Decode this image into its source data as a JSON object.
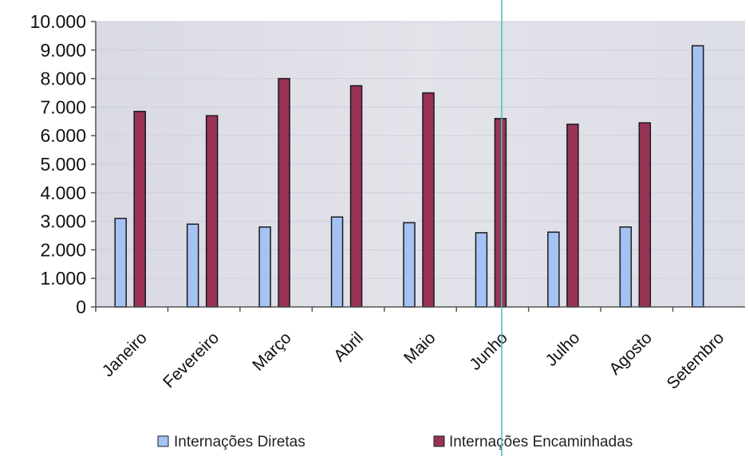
{
  "chart_data": {
    "type": "bar",
    "categories": [
      "Janeiro",
      "Fevereiro",
      "Março",
      "Abril",
      "Maio",
      "Junho",
      "Julho",
      "Agosto",
      "Setembro"
    ],
    "series": [
      {
        "name": "Internações Diretas",
        "color": "#a4c2f4",
        "values": [
          3100,
          2900,
          2800,
          3150,
          2950,
          2600,
          2620,
          2800,
          9150
        ]
      },
      {
        "name": "Internações Encaminhadas",
        "color": "#993355",
        "values": [
          6850,
          6700,
          8000,
          7750,
          7500,
          6600,
          6400,
          6450,
          null
        ]
      }
    ],
    "yticks": [
      "0",
      "1.000",
      "2.000",
      "3.000",
      "4.000",
      "5.000",
      "6.000",
      "7.000",
      "8.000",
      "9.000",
      "10.000"
    ],
    "ylim": [
      0,
      10000
    ],
    "legend_position": "bottom",
    "colors": {
      "plot_background": "#dfe0e8",
      "axis": "#555555",
      "crosshair": "#36c3c8"
    }
  }
}
